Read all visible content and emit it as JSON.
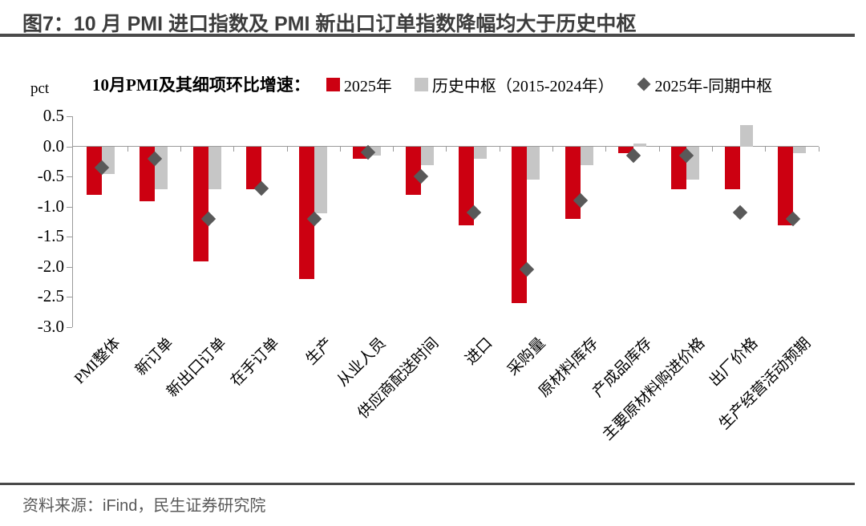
{
  "header": {
    "title": "图7：10 月 PMI 进口指数及 PMI 新出口订单指数降幅均大于历史中枢"
  },
  "footer": {
    "source": "资料来源：iFind，民生证券研究院"
  },
  "chart_data": {
    "type": "bar",
    "legend_title": "10月PMI及其细项环比增速：",
    "unit_label": "pct",
    "legend_position": "top",
    "grid": false,
    "ylim": [
      -3.0,
      0.5
    ],
    "yticks": [
      0.5,
      0.0,
      -0.5,
      -1.0,
      -1.5,
      -2.0,
      -2.5,
      -3.0
    ],
    "categories": [
      "PMI整体",
      "新订单",
      "新出口订单",
      "在手订单",
      "生产",
      "从业人员",
      "供应商配送时间",
      "进口",
      "采购量",
      "原材料库存",
      "产成品库存",
      "主要原材料购进价格",
      "出厂价格",
      "生产经营活动预期"
    ],
    "series": [
      {
        "name": "2025年",
        "type": "bar",
        "color": "#cc0011",
        "values": [
          -0.8,
          -0.9,
          -1.9,
          -0.7,
          -2.2,
          -0.2,
          -0.8,
          -1.3,
          -2.6,
          -1.2,
          -0.1,
          -0.7,
          -0.7,
          -1.3
        ]
      },
      {
        "name": "历史中枢（2015-2024年）",
        "type": "bar",
        "color": "#c6c6c6",
        "values": [
          -0.45,
          -0.7,
          -0.7,
          0.0,
          -1.1,
          -0.15,
          -0.3,
          -0.2,
          -0.55,
          -0.3,
          0.05,
          -0.55,
          0.35,
          -0.1
        ]
      },
      {
        "name": "2025年-同期中枢",
        "type": "scatter-diamond",
        "color": "#595959",
        "values": [
          -0.35,
          -0.2,
          -1.2,
          -0.7,
          -1.2,
          -0.1,
          -0.5,
          -1.1,
          -2.05,
          -0.9,
          -0.15,
          -0.15,
          -1.1,
          -1.2
        ]
      }
    ]
  },
  "colors": {
    "axis": "#9a9a9a",
    "title_text": "#3d3d3d",
    "rule": "#4a4a4a",
    "source_text": "#595959"
  }
}
